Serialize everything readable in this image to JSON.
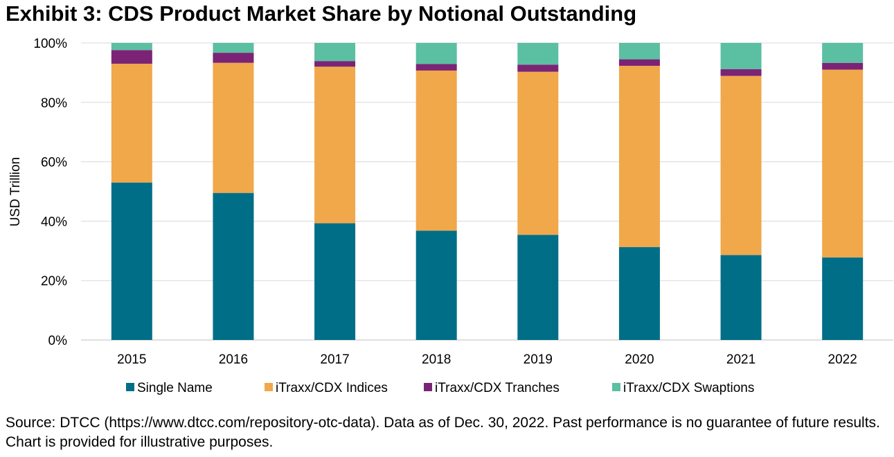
{
  "title": "Exhibit 3: CDS Product Market Share by Notional Outstanding",
  "source_note": "Source: DTCC (https://www.dtcc.com/repository-otc-data). Data as of Dec. 30, 2022. Past performance is no guarantee of future results. Chart is provided for illustrative purposes.",
  "chart_data": {
    "type": "bar",
    "stacked": true,
    "title": "Exhibit 3: CDS Product Market Share by Notional Outstanding",
    "xlabel": "",
    "ylabel": "USD Trillion",
    "ylim": [
      0,
      100
    ],
    "yticks": [
      0,
      20,
      40,
      60,
      80,
      100
    ],
    "ytick_labels": [
      "0%",
      "20%",
      "40%",
      "60%",
      "80%",
      "100%"
    ],
    "grid": true,
    "legend_position": "bottom",
    "categories": [
      "2015",
      "2016",
      "2017",
      "2018",
      "2019",
      "2020",
      "2021",
      "2022"
    ],
    "series": [
      {
        "name": "Single Name",
        "color": "#006E87",
        "values": [
          53.0,
          49.5,
          39.3,
          36.8,
          35.4,
          31.3,
          28.6,
          27.8
        ]
      },
      {
        "name": "iTraxx/CDX Indices",
        "color": "#F0A84B",
        "values": [
          40.0,
          43.8,
          52.7,
          53.9,
          54.9,
          61.0,
          60.3,
          63.2
        ]
      },
      {
        "name": "iTraxx/CDX Tranches",
        "color": "#7B2476",
        "values": [
          4.6,
          3.4,
          1.9,
          2.2,
          2.4,
          2.2,
          2.3,
          2.3
        ]
      },
      {
        "name": "iTraxx/CDX Swaptions",
        "color": "#5BBFA2",
        "values": [
          2.4,
          3.3,
          6.1,
          7.1,
          7.3,
          5.5,
          8.8,
          6.7
        ]
      }
    ]
  }
}
